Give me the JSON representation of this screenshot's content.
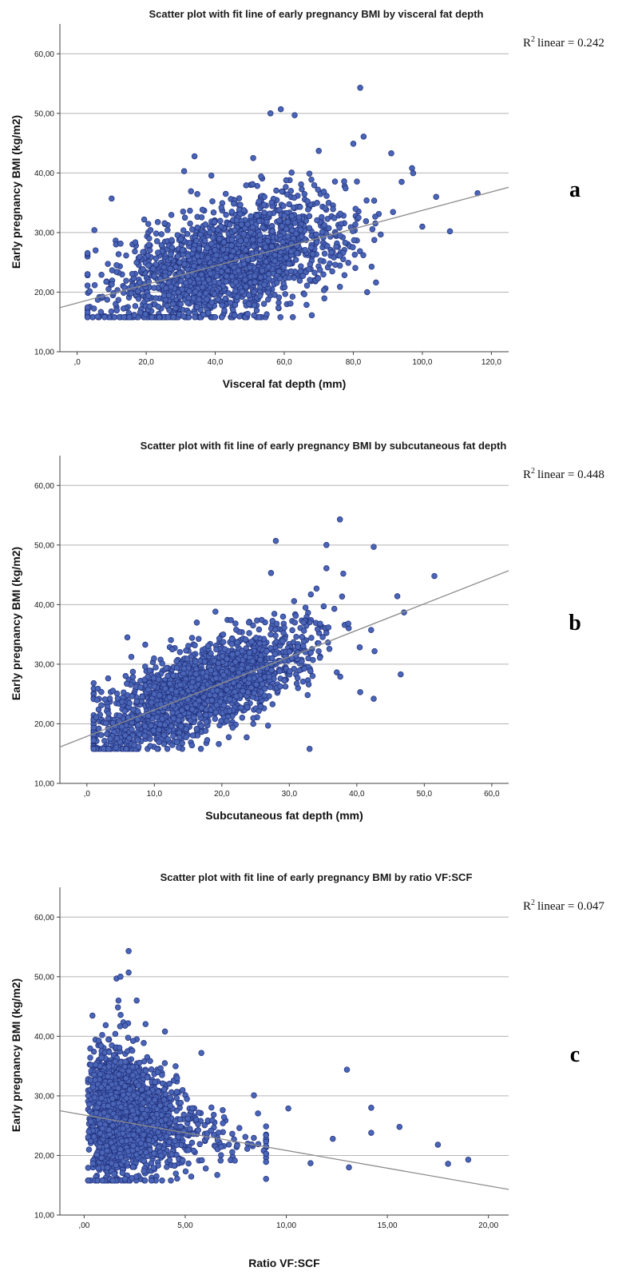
{
  "colors": {
    "point_fill": "#4A64B6",
    "point_stroke": "#1F2F7A",
    "fit_line": "#8C8C8C",
    "gridline": "#B4B4B4",
    "axis": "#404040"
  },
  "chart_data": [
    {
      "type": "scatter",
      "panel_label": "a",
      "title": "Scatter plot with fit line of early pregnancy BMI by visceral fat depth",
      "xlabel": "Visceral fat depth (mm)",
      "ylabel": "Early pregnancy BMI (kg/m2)",
      "r2_text": "linear = 0.242",
      "r2_value": 0.242,
      "xlim": [
        -5,
        125
      ],
      "ylim": [
        10,
        65
      ],
      "xticks": [
        0,
        20,
        40,
        60,
        80,
        100,
        120
      ],
      "xtick_labels": [
        ",0",
        "20,0",
        "40,0",
        "60,0",
        "80,0",
        "100,0",
        "120,0"
      ],
      "yticks": [
        10,
        20,
        30,
        40,
        50,
        60
      ],
      "ytick_labels": [
        "10,00",
        "20,00",
        "30,00",
        "40,00",
        "50,00",
        "60,00"
      ],
      "fit_line": {
        "x": [
          -5,
          125
        ],
        "y": [
          17.4,
          37.6
        ]
      },
      "cloud": {
        "n": 1900,
        "x_mean": 44,
        "x_sd": 17,
        "x_min": 3,
        "x_max": 108,
        "slope": 0.155,
        "intercept": 18.2,
        "resid_sd": 4.7,
        "y_min": 15.8,
        "y_max": 46
      },
      "notable_points": [
        {
          "x": 82,
          "y": 54.3
        },
        {
          "x": 59,
          "y": 50.7
        },
        {
          "x": 56,
          "y": 50.0
        },
        {
          "x": 63,
          "y": 49.7
        },
        {
          "x": 83,
          "y": 46.1
        },
        {
          "x": 80,
          "y": 44.9
        },
        {
          "x": 91,
          "y": 43.3
        },
        {
          "x": 70,
          "y": 43.7
        },
        {
          "x": 34,
          "y": 42.8
        },
        {
          "x": 51,
          "y": 42.5
        },
        {
          "x": 116,
          "y": 36.6
        },
        {
          "x": 104,
          "y": 36.0
        },
        {
          "x": 108,
          "y": 30.2
        },
        {
          "x": 100,
          "y": 31.0
        },
        {
          "x": 10,
          "y": 35.7
        },
        {
          "x": 5,
          "y": 30.4
        },
        {
          "x": 84,
          "y": 20.0
        },
        {
          "x": 31,
          "y": 40.3
        },
        {
          "x": 94,
          "y": 38.5
        },
        {
          "x": 97,
          "y": 40.8
        }
      ]
    },
    {
      "type": "scatter",
      "panel_label": "b",
      "title": "Scatter plot with fit line of early pregnancy BMI by subcutaneous fat depth",
      "xlabel": "Subcutaneous fat depth (mm)",
      "ylabel": "Early pregnancy BMI (kg/m2)",
      "r2_text": "linear = 0.448",
      "r2_value": 0.448,
      "xlim": [
        -4,
        62.5
      ],
      "ylim": [
        10,
        65
      ],
      "xticks": [
        0,
        10,
        20,
        30,
        40,
        50,
        60
      ],
      "xtick_labels": [
        ",0",
        "10,0",
        "20,0",
        "30,0",
        "40,0",
        "50,0",
        "60,0"
      ],
      "yticks": [
        10,
        20,
        30,
        40,
        50,
        60
      ],
      "ytick_labels": [
        "10,00",
        "20,00",
        "30,00",
        "40,00",
        "50,00",
        "60,00"
      ],
      "fit_line": {
        "x": [
          -4,
          62.5
        ],
        "y": [
          16.1,
          45.7
        ]
      },
      "cloud": {
        "n": 1900,
        "x_mean": 17,
        "x_sd": 8,
        "x_min": 1,
        "x_max": 47,
        "slope": 0.45,
        "intercept": 18.0,
        "resid_sd": 3.6,
        "y_min": 15.8,
        "y_max": 46
      },
      "notable_points": [
        {
          "x": 37.5,
          "y": 54.3
        },
        {
          "x": 28,
          "y": 50.7
        },
        {
          "x": 35.5,
          "y": 50.0
        },
        {
          "x": 42.5,
          "y": 49.7
        },
        {
          "x": 51.5,
          "y": 44.8
        },
        {
          "x": 35.5,
          "y": 46.1
        },
        {
          "x": 38,
          "y": 45.2
        },
        {
          "x": 47,
          "y": 38.7
        },
        {
          "x": 46,
          "y": 41.4
        },
        {
          "x": 6,
          "y": 34.5
        },
        {
          "x": 33,
          "y": 15.8
        },
        {
          "x": 42.5,
          "y": 24.2
        },
        {
          "x": 46.5,
          "y": 28.3
        },
        {
          "x": 40.5,
          "y": 25.3
        },
        {
          "x": 1.5,
          "y": 24.0
        }
      ]
    },
    {
      "type": "scatter",
      "panel_label": "c",
      "title": "Scatter plot with fit line of early pregnancy BMI by ratio VF:SCF",
      "xlabel": "Ratio VF:SCF",
      "ylabel": "Early pregnancy BMI (kg/m2)",
      "r2_text": "linear = 0.047",
      "r2_value": 0.047,
      "xlim": [
        -1.2,
        21
      ],
      "ylim": [
        10,
        65
      ],
      "xticks": [
        0,
        5,
        10,
        15,
        20
      ],
      "xtick_labels": [
        ",00",
        "5,00",
        "10,00",
        "15,00",
        "20,00"
      ],
      "yticks": [
        10,
        20,
        30,
        40,
        50,
        60
      ],
      "ytick_labels": [
        "10,00",
        "20,00",
        "30,00",
        "40,00",
        "50,00",
        "60,00"
      ],
      "fit_line": {
        "x": [
          -1.2,
          21
        ],
        "y": [
          27.5,
          14.3
        ]
      },
      "cloud": {
        "n": 1900,
        "x_shape": "skewed",
        "x_mode": 1.8,
        "x_min": 0.2,
        "x_max": 9,
        "y_min": 15.8,
        "y_max": 46
      },
      "notable_points": [
        {
          "x": 2.2,
          "y": 54.3
        },
        {
          "x": 2.2,
          "y": 50.7
        },
        {
          "x": 1.6,
          "y": 49.7
        },
        {
          "x": 1.8,
          "y": 50.0
        },
        {
          "x": 2.6,
          "y": 46.0
        },
        {
          "x": 13.0,
          "y": 34.4
        },
        {
          "x": 14.2,
          "y": 28.0
        },
        {
          "x": 14.2,
          "y": 23.8
        },
        {
          "x": 15.6,
          "y": 24.8
        },
        {
          "x": 17.5,
          "y": 21.8
        },
        {
          "x": 18.0,
          "y": 18.6
        },
        {
          "x": 19.0,
          "y": 19.3
        },
        {
          "x": 13.1,
          "y": 18.0
        },
        {
          "x": 11.2,
          "y": 18.7
        },
        {
          "x": 12.3,
          "y": 22.8
        },
        {
          "x": 10.1,
          "y": 27.9
        },
        {
          "x": 8.4,
          "y": 30.1
        },
        {
          "x": 0.9,
          "y": 15.8
        },
        {
          "x": 5.8,
          "y": 37.2
        },
        {
          "x": 4.0,
          "y": 40.8
        }
      ]
    }
  ]
}
